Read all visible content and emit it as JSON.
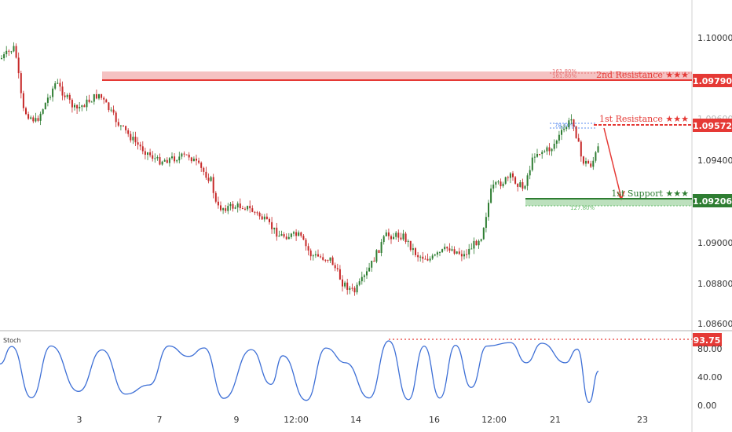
{
  "chart_data": {
    "type": "candlestick",
    "price_axis": {
      "ticks": [
        "1.10000",
        "1.09400",
        "1.09000",
        "1.08800",
        "1.08600"
      ],
      "ylim": [
        1.0852,
        1.1028
      ]
    },
    "x_axis": {
      "ticks": [
        "3",
        "7",
        "9",
        "12:00",
        "14",
        "16",
        "12:00",
        "21",
        "23"
      ]
    },
    "zones": {
      "resistance2": {
        "label": "2nd Resistance ★★★",
        "price": 1.0979,
        "tag": "1.09790",
        "fib_a": "161.80%",
        "fib_b": "161.80%",
        "color": "#e53935",
        "fill": "#ef9a9a"
      },
      "resistance1": {
        "label": "1st Resistance ★★★",
        "price": 1.09572,
        "tag": "1.09572",
        "fib": "78.60%",
        "color": "#e53935"
      },
      "support1": {
        "label": "1st Support ★★★",
        "price": 1.09206,
        "tag": "1.09206",
        "fib": "127.80%",
        "color": "#2e7d32",
        "fill": "#a5d6a7"
      }
    },
    "price_partial_label": "1.09600",
    "candle_colors": {
      "up": "#2e7d32",
      "down": "#c62828"
    },
    "stochastic": {
      "title": "Stoch",
      "ticks": [
        "80.00",
        "40.00",
        "0.00"
      ],
      "level_tag": "93.75",
      "level": 93.75,
      "color": "#3d6fd6",
      "level_color": "#e53935"
    }
  }
}
